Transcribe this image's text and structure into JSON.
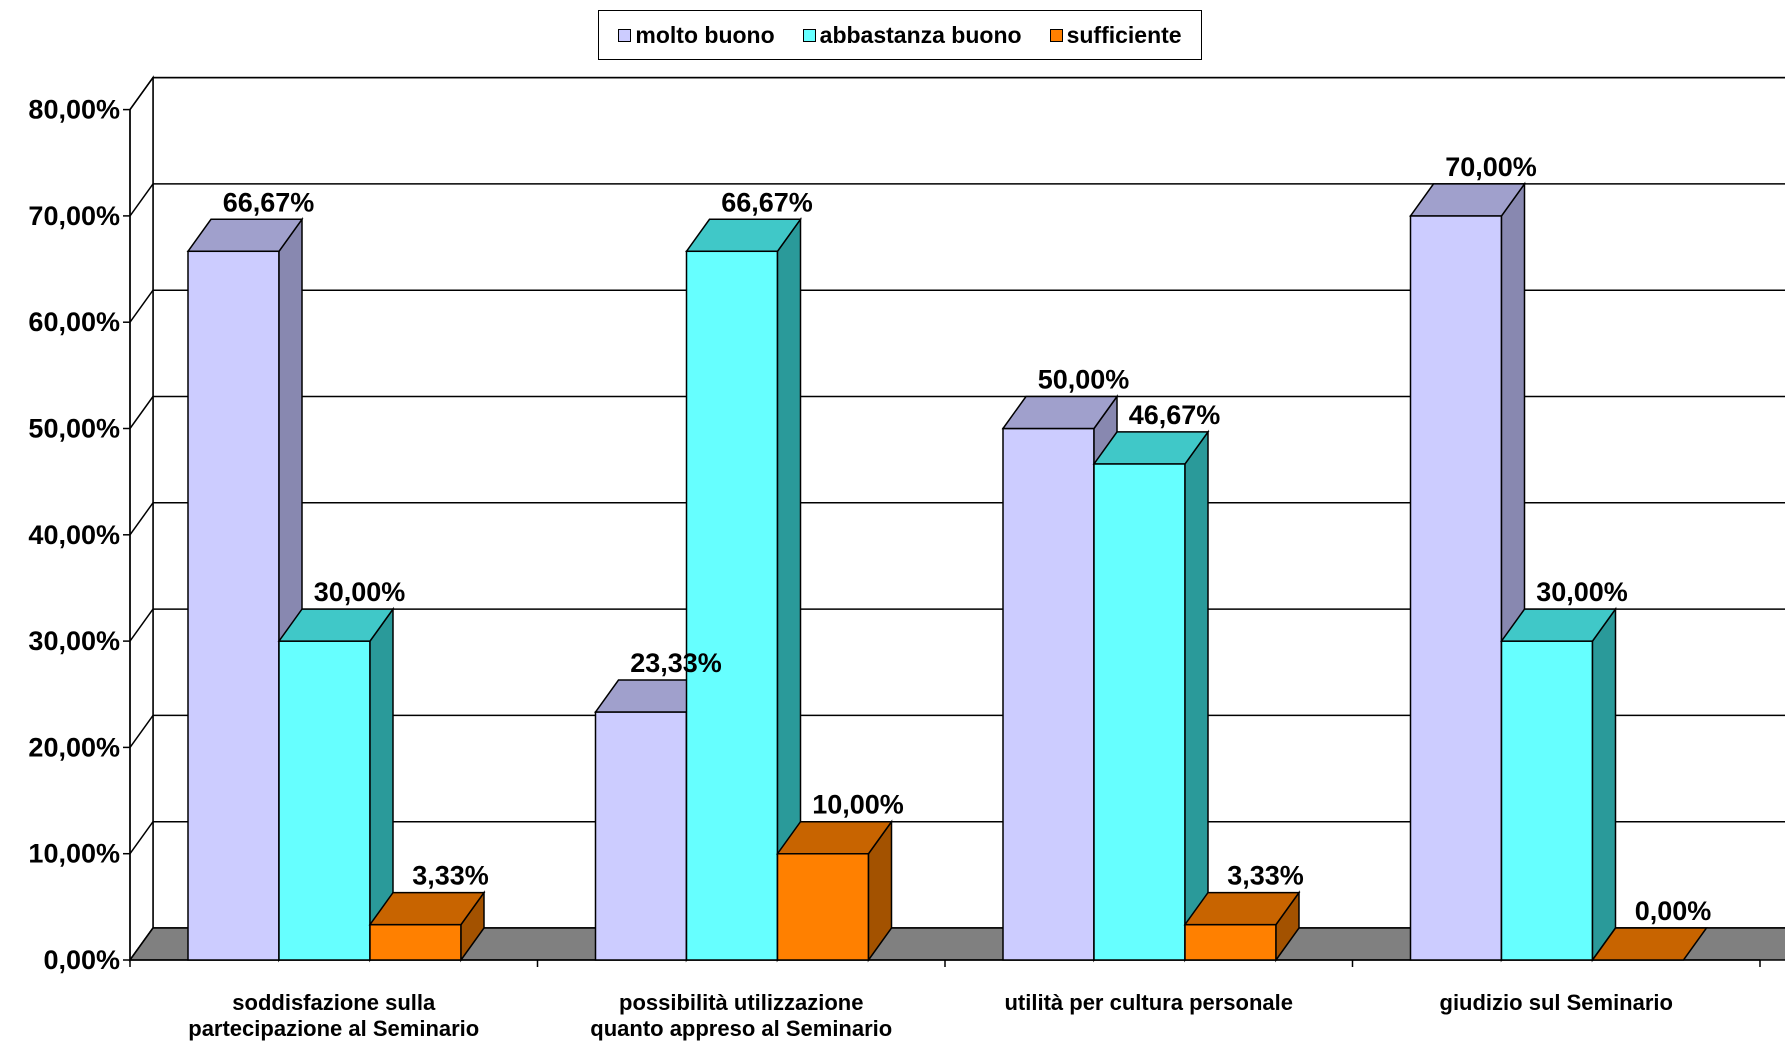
{
  "chart_data": {
    "type": "bar",
    "style": "3d-clustered-column",
    "categories": [
      [
        "soddisfazione sulla",
        "partecipazione al Seminario"
      ],
      [
        "possibilità utilizzazione",
        "quanto appreso al Seminario"
      ],
      [
        "utilità per cultura personale"
      ],
      [
        "giudizio sul Seminario"
      ]
    ],
    "series": [
      {
        "name": "molto buono",
        "color": "#ccccff",
        "side": "#8888b0",
        "top": "#a0a0cc",
        "values": [
          66.67,
          23.33,
          50.0,
          70.0
        ],
        "labels": [
          "66,67%",
          "23,33%",
          "50,00%",
          "70,00%"
        ]
      },
      {
        "name": "abbastanza buono",
        "color": "#66ffff",
        "side": "#2a9a9a",
        "top": "#40c8c8",
        "values": [
          30.0,
          66.67,
          46.67,
          30.0
        ],
        "labels": [
          "30,00%",
          "66,67%",
          "46,67%",
          "30,00%"
        ]
      },
      {
        "name": "sufficiente",
        "color": "#ff8000",
        "side": "#a35200",
        "top": "#c86400",
        "values": [
          3.33,
          10.0,
          3.33,
          0.0
        ],
        "labels": [
          "3,33%",
          "10,00%",
          "3,33%",
          "0,00%"
        ]
      }
    ],
    "yticks": [
      "0,00%",
      "10,00%",
      "20,00%",
      "30,00%",
      "40,00%",
      "50,00%",
      "60,00%",
      "70,00%",
      "80,00%"
    ],
    "ylim": [
      0,
      80
    ],
    "grid": true,
    "legend_position": "top",
    "floor_color": "#808080"
  }
}
